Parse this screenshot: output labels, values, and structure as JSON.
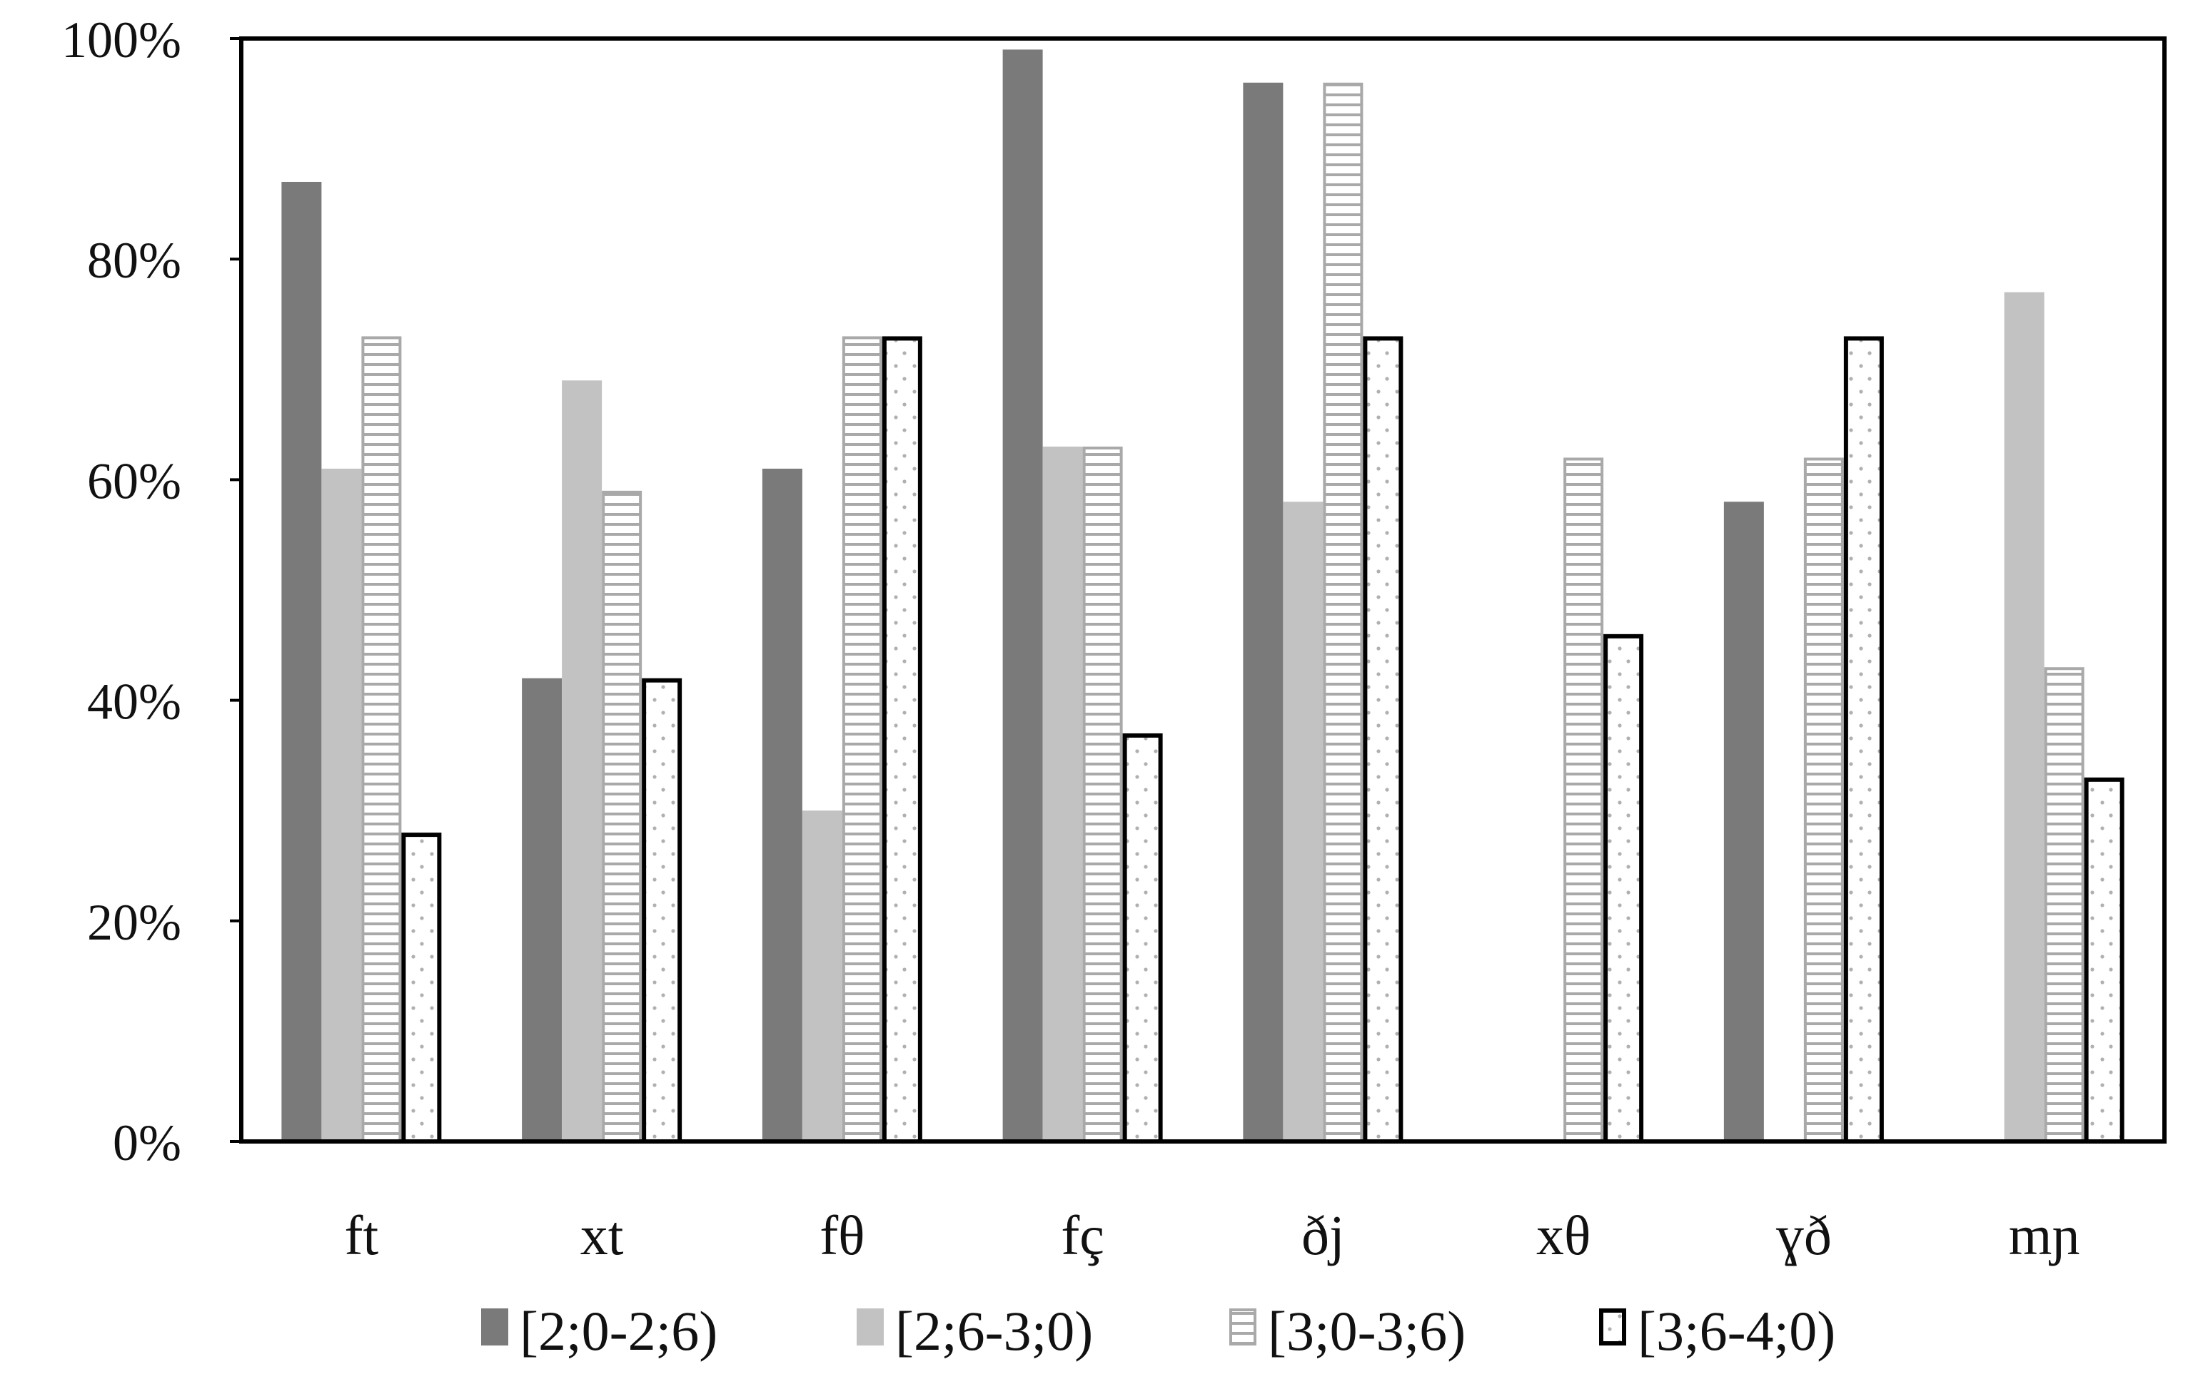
{
  "chart_data": {
    "type": "bar",
    "title": "",
    "xlabel": "",
    "ylabel": "",
    "ylim": [
      0,
      100
    ],
    "yticks": [
      0,
      20,
      40,
      60,
      80,
      100
    ],
    "ytick_labels": [
      "0%",
      "20%",
      "40%",
      "60%",
      "80%",
      "100%"
    ],
    "grid": false,
    "legend_position": "bottom",
    "categories": [
      "ft",
      "xt",
      "fθ",
      "fç",
      "ðj",
      "xθ",
      "ɣð",
      "mɲ"
    ],
    "series": [
      {
        "name": "[2;0-2;6)",
        "pattern": "solid-dark",
        "values": [
          87,
          42,
          61,
          99,
          96,
          0,
          58,
          0
        ]
      },
      {
        "name": "[2;6-3;0)",
        "pattern": "solid-light",
        "values": [
          61,
          69,
          30,
          63,
          58,
          0,
          0,
          77
        ]
      },
      {
        "name": "[3;0-3;6)",
        "pattern": "horizontal-stripes",
        "values": [
          73,
          59,
          73,
          63,
          96,
          62,
          62,
          43
        ]
      },
      {
        "name": "[3;6-4;0)",
        "pattern": "dotted-outlined",
        "values": [
          28,
          42,
          73,
          37,
          73,
          46,
          73,
          33
        ]
      }
    ],
    "colors": {
      "dark": "#7a7a7a",
      "light": "#c2c2c2",
      "stripe_line": "#a9a9a9",
      "outline": "#000000"
    }
  }
}
